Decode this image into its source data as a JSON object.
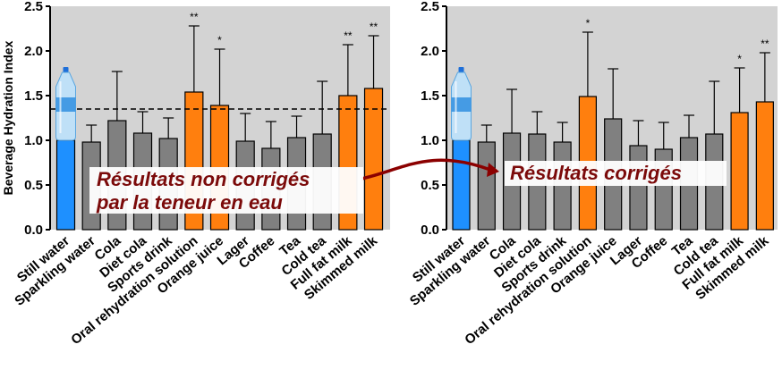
{
  "chart_data": [
    {
      "type": "bar",
      "ylabel": "Beverage Hydration Index",
      "ylim": [
        0,
        2.5
      ],
      "yticks": [
        "0.0",
        "0.5",
        "1.0",
        "1.5",
        "2.0",
        "2.5"
      ],
      "reference_line": 1.35,
      "annotation": [
        "Résultats non corrigés",
        "par la teneur en eau"
      ],
      "categories": [
        "Still water",
        "Sparkling water",
        "Cola",
        "Diet cola",
        "Sports drink",
        "Oral rehydration solution",
        "Orange juice",
        "Lager",
        "Coffee",
        "Tea",
        "Cold tea",
        "Full fat milk",
        "Skimmed milk"
      ],
      "values": [
        1.0,
        0.98,
        1.22,
        1.08,
        1.02,
        1.54,
        1.39,
        0.99,
        0.91,
        1.03,
        1.07,
        1.5,
        1.58
      ],
      "error_upper": [
        0,
        1.17,
        1.77,
        1.32,
        1.25,
        2.28,
        2.02,
        1.3,
        1.21,
        1.27,
        1.66,
        2.07,
        2.17
      ],
      "significance": [
        "",
        "",
        "",
        "",
        "",
        "**",
        "*",
        "",
        "",
        "",
        "",
        "**",
        "**"
      ],
      "bar_colors": [
        "#1e90ff",
        "#808080",
        "#808080",
        "#808080",
        "#808080",
        "#ff7f0e",
        "#ff7f0e",
        "#808080",
        "#808080",
        "#808080",
        "#808080",
        "#ff7f0e",
        "#ff7f0e"
      ]
    },
    {
      "type": "bar",
      "ylabel": "",
      "ylim": [
        0,
        2.5
      ],
      "yticks": [
        "0.0",
        "0.5",
        "1.0",
        "1.5",
        "2.0",
        "2.5"
      ],
      "annotation": [
        "Résultats corrigés"
      ],
      "categories": [
        "Still water",
        "Sparkling water",
        "Cola",
        "Diet cola",
        "Sports drink",
        "Oral rehydration solution",
        "Orange juice",
        "Lager",
        "Coffee",
        "Tea",
        "Cold tea",
        "Full fat milk",
        "Skimmed milk"
      ],
      "values": [
        1.0,
        0.98,
        1.08,
        1.07,
        0.98,
        1.49,
        1.24,
        0.94,
        0.9,
        1.03,
        1.07,
        1.31,
        1.43
      ],
      "error_upper": [
        0,
        1.17,
        1.57,
        1.32,
        1.2,
        2.21,
        1.8,
        1.22,
        1.2,
        1.28,
        1.66,
        1.81,
        1.98
      ],
      "significance": [
        "",
        "",
        "",
        "",
        "",
        "*",
        "",
        "",
        "",
        "",
        "",
        "*",
        "**"
      ],
      "bar_colors": [
        "#1e90ff",
        "#808080",
        "#808080",
        "#808080",
        "#808080",
        "#ff7f0e",
        "#808080",
        "#808080",
        "#808080",
        "#808080",
        "#808080",
        "#ff7f0e",
        "#ff7f0e"
      ]
    }
  ],
  "colors": {
    "plot_background": "#d3d3d3",
    "water": "#1e90ff",
    "neutral": "#808080",
    "significant": "#ff7f0e",
    "annotation_text": "#7b0a0a",
    "arrow": "#8b0000"
  },
  "icons": [
    "water-bottle-icon"
  ]
}
